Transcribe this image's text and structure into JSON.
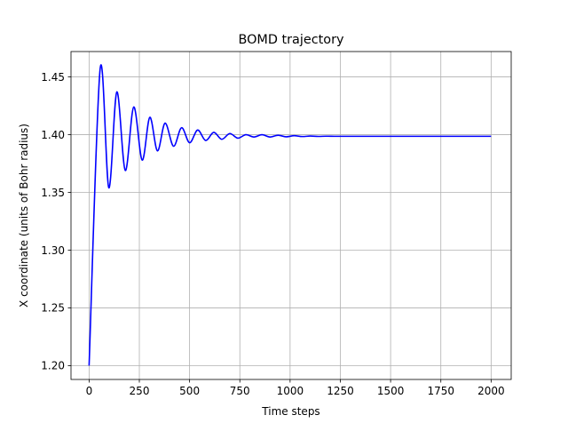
{
  "chart_data": {
    "type": "line",
    "title": "BOMD trajectory",
    "xlabel": "Time steps",
    "ylabel": "X coordinate (units of Bohr radius)",
    "xlim": [
      -90,
      2100
    ],
    "ylim": [
      1.188,
      1.472
    ],
    "xticks": [
      0,
      250,
      500,
      750,
      1000,
      1250,
      1500,
      1750,
      2000
    ],
    "yticks": [
      1.2,
      1.25,
      1.3,
      1.35,
      1.4,
      1.45
    ],
    "xtick_labels": [
      "0",
      "250",
      "500",
      "750",
      "1000",
      "1250",
      "1500",
      "1750",
      "2000"
    ],
    "ytick_labels": [
      "1.20",
      "1.25",
      "1.30",
      "1.35",
      "1.40",
      "1.45"
    ],
    "grid": true,
    "series": [
      {
        "color": "#0000ff",
        "x": [
          0,
          55,
          98,
          138,
          180,
          222,
          264,
          302,
          340,
          378,
          420,
          460,
          500,
          540,
          580,
          620,
          660,
          700,
          740,
          780,
          820,
          860,
          900,
          940,
          980,
          1020,
          1060,
          1100,
          1140,
          1180,
          1220,
          1260,
          2000
        ],
        "y": [
          1.2,
          1.457,
          1.354,
          1.437,
          1.369,
          1.424,
          1.378,
          1.415,
          1.386,
          1.41,
          1.39,
          1.406,
          1.393,
          1.404,
          1.395,
          1.402,
          1.396,
          1.401,
          1.397,
          1.4,
          1.398,
          1.4,
          1.398,
          1.3995,
          1.3982,
          1.3991,
          1.3984,
          1.3988,
          1.3985,
          1.3987,
          1.3986,
          1.3986,
          1.3986
        ]
      }
    ]
  }
}
